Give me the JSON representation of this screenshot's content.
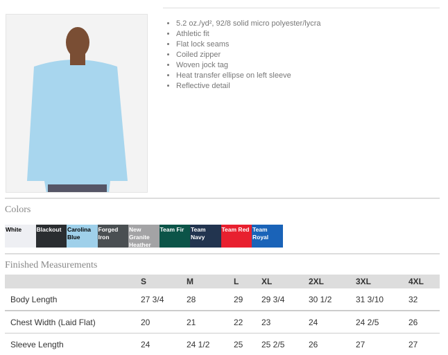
{
  "features": [
    "5.2 oz./yd², 92/8 solid micro polyester/lycra",
    "Athletic fit",
    "Flat lock seams",
    "Coiled zipper",
    "Woven jock tag",
    "Heat transfer ellipse on left sleeve",
    "Reflective detail"
  ],
  "colors_title": "Colors",
  "swatches": [
    {
      "name": "White",
      "color": "#eeeff3",
      "text": "#000"
    },
    {
      "name": "Blackout",
      "color": "#2a2d30",
      "text": "#fff"
    },
    {
      "name": "Carolina Blue",
      "color": "#9fd0ea",
      "text": "#000"
    },
    {
      "name": "Forged Iron",
      "color": "#4a4f52",
      "text": "#fff"
    },
    {
      "name": "New Granite Heather",
      "color": "#a3a3a5",
      "text": "#fff"
    },
    {
      "name": "Team Fir",
      "color": "#0c5448",
      "text": "#fff"
    },
    {
      "name": "Team Navy",
      "color": "#22344f",
      "text": "#fff"
    },
    {
      "name": "Team Red",
      "color": "#e8202f",
      "text": "#fff"
    },
    {
      "name": "Team Royal",
      "color": "#1a63b8",
      "text": "#fff"
    }
  ],
  "measure_title": "Finished Measurements",
  "sizes": [
    "S",
    "M",
    "L",
    "XL",
    "2XL",
    "3XL",
    "4XL"
  ],
  "rows": [
    {
      "label": "Body Length",
      "values": [
        "27 3/4",
        "28",
        "29",
        "29 3/4",
        "30 1/2",
        "31 3/10",
        "32"
      ]
    },
    {
      "label": "Chest Width (Laid Flat)",
      "values": [
        "20",
        "21",
        "22",
        "23",
        "24",
        "24 2/5",
        "26"
      ]
    },
    {
      "label": "Sleeve Length",
      "values": [
        "24",
        "24 1/2",
        "25",
        "25 2/5",
        "26",
        "27",
        "27"
      ]
    }
  ]
}
